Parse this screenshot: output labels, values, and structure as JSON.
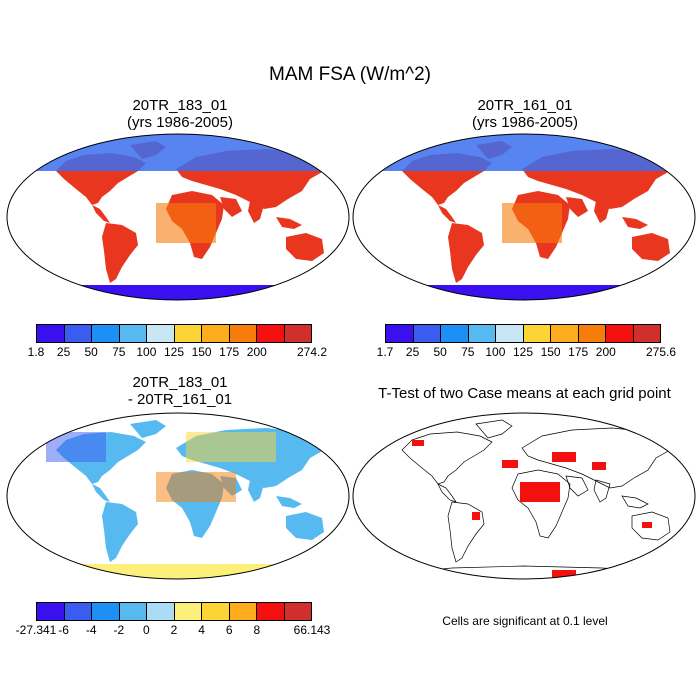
{
  "title": "MAM FSA (W/m^2)",
  "panels": {
    "top_left": {
      "title_line1": "20TR_183_01",
      "title_line2": "(yrs 1986-2005)"
    },
    "top_right": {
      "title_line1": "20TR_161_01",
      "title_line2": "(yrs 1986-2005)"
    },
    "bottom_left": {
      "title_line1": "20TR_183_01",
      "title_line2": "- 20TR_161_01"
    },
    "bottom_right": {
      "title": "T-Test of two Case means at each grid point",
      "note": "Cells are significant at 0.1 level"
    }
  },
  "colorbars": {
    "abs_colors": [
      "#3a0ff0",
      "#3b5cf0",
      "#1e8ff5",
      "#56b9f0",
      "#c9e6f5",
      "#fcd435",
      "#fcac1c",
      "#f77d0b",
      "#f51010",
      "#d02f2b"
    ],
    "top_left_ticks": [
      "1.8",
      "25",
      "50",
      "75",
      "100",
      "125",
      "150",
      "175",
      "200",
      "274.2"
    ],
    "top_right_ticks": [
      "1.7",
      "25",
      "50",
      "75",
      "100",
      "125",
      "150",
      "175",
      "200",
      "275.6"
    ],
    "diff_colors": [
      "#3a0ff0",
      "#3b5cf0",
      "#1e8ff5",
      "#56b9f0",
      "#aadcf5",
      "#fcf07a",
      "#fcd435",
      "#fcac1c",
      "#f51010",
      "#d02f2b"
    ],
    "diff_ticks": [
      "-27.341",
      "-6",
      "-4",
      "-2",
      "0",
      "2",
      "4",
      "6",
      "8",
      "66.143"
    ]
  }
}
